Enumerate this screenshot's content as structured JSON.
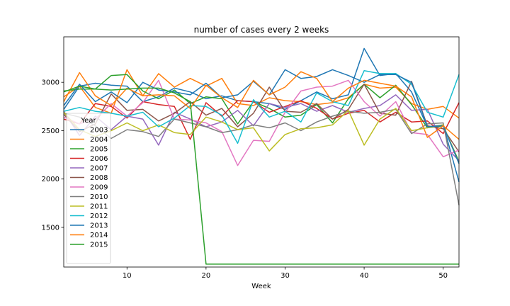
{
  "chart_data": {
    "type": "line",
    "title": "number of cases every 2 weeks",
    "xlabel": "Week",
    "ylabel": "",
    "xlim": [
      2,
      52
    ],
    "ylim": [
      1090,
      3470
    ],
    "xticks": [
      10,
      20,
      30,
      40,
      50
    ],
    "yticks": [
      1500,
      2000,
      2500,
      3000
    ],
    "legend_title": "Year",
    "legend_position": "center-left",
    "x": [
      2,
      4,
      6,
      8,
      10,
      12,
      14,
      16,
      18,
      20,
      22,
      24,
      26,
      28,
      30,
      32,
      34,
      36,
      38,
      40,
      42,
      44,
      46,
      48,
      50,
      52
    ],
    "series": [
      {
        "name": "2003",
        "color": "#1f77b4",
        "values": [
          2720,
          2960,
          2990,
          2970,
          2960,
          2800,
          2850,
          2940,
          2900,
          2830,
          2860,
          2810,
          2800,
          2780,
          2720,
          2810,
          2900,
          2830,
          2870,
          3350,
          3070,
          3090,
          2900,
          2540,
          2560,
          1970
        ]
      },
      {
        "name": "2004",
        "color": "#ff7f0e",
        "values": [
          2850,
          2960,
          2740,
          2680,
          3130,
          2860,
          3090,
          2950,
          3040,
          2960,
          3040,
          2780,
          2760,
          2840,
          2810,
          2800,
          2770,
          2790,
          2840,
          2980,
          2940,
          2950,
          2780,
          2720,
          2750,
          2630
        ]
      },
      {
        "name": "2005",
        "color": "#2ca02c",
        "values": [
          2910,
          2930,
          2930,
          3070,
          3080,
          2910,
          2830,
          2920,
          2780,
          2850,
          2830,
          2570,
          2800,
          2730,
          2640,
          2660,
          2770,
          2580,
          2830,
          2980,
          2840,
          2970,
          2770,
          2530,
          2550,
          2180
        ]
      },
      {
        "name": "2006",
        "color": "#d62728",
        "values": [
          2620,
          2570,
          2780,
          2750,
          2630,
          2800,
          2770,
          2750,
          2410,
          2790,
          2650,
          2810,
          2800,
          2690,
          2750,
          2810,
          2730,
          2620,
          2680,
          2710,
          2590,
          2690,
          2590,
          2600,
          2470,
          2790
        ]
      },
      {
        "name": "2007",
        "color": "#9467bd",
        "values": [
          2700,
          2450,
          2650,
          2510,
          2650,
          2620,
          2350,
          2690,
          2620,
          2540,
          2590,
          2710,
          2550,
          2780,
          2740,
          2780,
          2700,
          2760,
          2690,
          2730,
          2760,
          2870,
          2710,
          2720,
          2360,
          2190
        ]
      },
      {
        "name": "2008",
        "color": "#8c564b",
        "values": [
          2670,
          2490,
          2570,
          2880,
          2710,
          2720,
          2600,
          2680,
          2800,
          2660,
          2730,
          2540,
          2680,
          2950,
          2700,
          2690,
          2780,
          2620,
          2720,
          2980,
          2680,
          2660,
          3010,
          2550,
          2520,
          2280
        ]
      },
      {
        "name": "2009",
        "color": "#e377c2",
        "values": [
          2640,
          2570,
          2620,
          2780,
          2650,
          2790,
          3020,
          2620,
          2610,
          2580,
          2490,
          2140,
          2400,
          2390,
          2690,
          2910,
          2950,
          2960,
          3020,
          2800,
          2650,
          2800,
          2480,
          2460,
          2230,
          2300
        ]
      },
      {
        "name": "2010",
        "color": "#7f7f7f",
        "values": [
          2680,
          2640,
          2550,
          2420,
          2510,
          2490,
          2440,
          2620,
          2580,
          2540,
          2480,
          2510,
          2560,
          2530,
          2580,
          2500,
          2590,
          2650,
          2700,
          2680,
          2690,
          2720,
          2470,
          2570,
          2580,
          1730
        ]
      },
      {
        "name": "2011",
        "color": "#bcbd22",
        "values": [
          2690,
          2510,
          2440,
          2500,
          2580,
          2500,
          2560,
          2480,
          2460,
          2640,
          2590,
          2510,
          2530,
          2290,
          2460,
          2520,
          2530,
          2560,
          2710,
          2350,
          2620,
          2730,
          2500,
          2530,
          2560,
          2160
        ]
      },
      {
        "name": "2012",
        "color": "#17becf",
        "values": [
          2700,
          2740,
          2700,
          2680,
          2650,
          2690,
          2540,
          2630,
          2760,
          2750,
          2660,
          2370,
          2820,
          2640,
          2700,
          2590,
          2890,
          2800,
          2760,
          3120,
          3090,
          3090,
          2980,
          2690,
          2640,
          3080
        ]
      },
      {
        "name": "2013",
        "color": "#1f77b4",
        "values": [
          2760,
          2980,
          2800,
          2900,
          2790,
          3000,
          2920,
          2900,
          2870,
          2990,
          2840,
          2870,
          3010,
          2870,
          3130,
          3040,
          3060,
          3130,
          3070,
          3000,
          3080,
          3080,
          3000,
          2540,
          2550,
          2160
        ]
      },
      {
        "name": "2014",
        "color": "#ff7f0e",
        "values": [
          2800,
          3100,
          2860,
          2760,
          2940,
          2860,
          2870,
          2860,
          2730,
          2970,
          2840,
          2740,
          3020,
          2870,
          2950,
          3110,
          3040,
          2800,
          2940,
          3020,
          2990,
          2960,
          2850,
          2430,
          2550,
          2410
        ]
      },
      {
        "name": "2015",
        "color": "#2ca02c",
        "values": [
          2900,
          2960,
          2930,
          2920,
          2930,
          2940,
          2940,
          2890,
          2800,
          1120,
          1120,
          1120,
          1120,
          1120,
          1120,
          1120,
          1120,
          1120,
          1120,
          1120,
          1120,
          1120,
          1120,
          1120,
          1120,
          1120
        ]
      }
    ]
  }
}
